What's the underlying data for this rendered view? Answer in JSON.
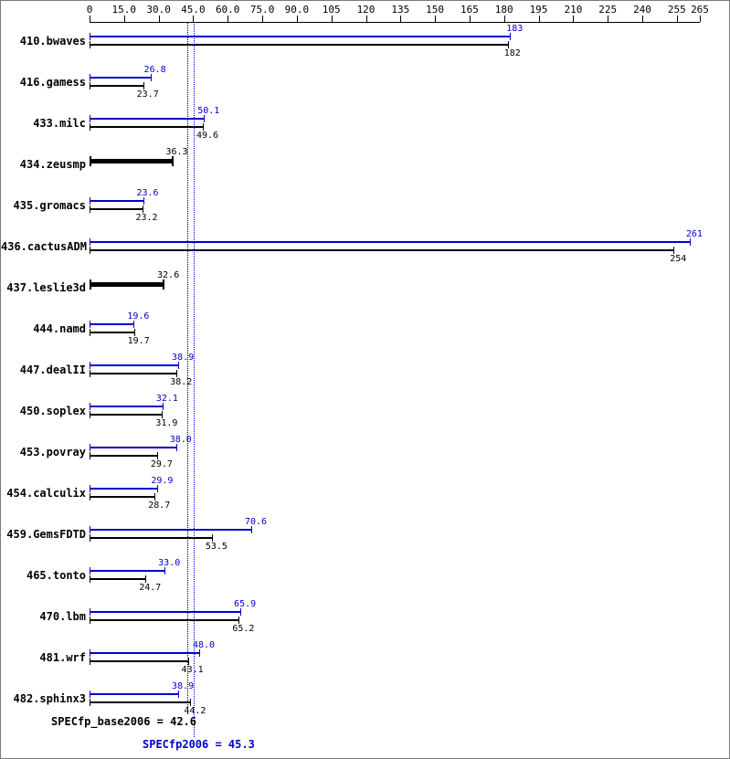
{
  "chart_data": {
    "type": "bar",
    "orientation": "horizontal",
    "x_axis": {
      "min": 0,
      "max": 265,
      "tick_values": [
        0,
        15,
        30,
        45,
        60,
        75,
        90,
        105,
        120,
        135,
        150,
        165,
        180,
        195,
        210,
        225,
        240,
        255,
        265
      ],
      "tick_labels": [
        "0",
        "15.0",
        "30.0",
        "45.0",
        "60.0",
        "75.0",
        "90.0",
        "105",
        "120",
        "135",
        "150",
        "165",
        "180",
        "195",
        "210",
        "225",
        "240",
        "255",
        "265"
      ],
      "grid": false
    },
    "series_meaning": {
      "peak": "SPECfp2006 (blue)",
      "base": "SPECfp_base2006 (black)"
    },
    "benchmarks": [
      {
        "name": "410.bwaves",
        "peak": 183,
        "peak_label": "183",
        "base": 182,
        "base_label": "182"
      },
      {
        "name": "416.gamess",
        "peak": 26.8,
        "peak_label": "26.8",
        "base": 23.7,
        "base_label": "23.7"
      },
      {
        "name": "433.milc",
        "peak": 50.1,
        "peak_label": "50.1",
        "base": 49.6,
        "base_label": "49.6"
      },
      {
        "name": "434.zeusmp",
        "single": true,
        "value": 36.3,
        "value_label": "36.3"
      },
      {
        "name": "435.gromacs",
        "peak": 23.6,
        "peak_label": "23.6",
        "base": 23.2,
        "base_label": "23.2"
      },
      {
        "name": "436.cactusADM",
        "peak": 261,
        "peak_label": "261",
        "base": 254,
        "base_label": "254"
      },
      {
        "name": "437.leslie3d",
        "single": true,
        "value": 32.6,
        "value_label": "32.6"
      },
      {
        "name": "444.namd",
        "peak": 19.6,
        "peak_label": "19.6",
        "base": 19.7,
        "base_label": "19.7"
      },
      {
        "name": "447.dealII",
        "peak": 38.9,
        "peak_label": "38.9",
        "base": 38.2,
        "base_label": "38.2"
      },
      {
        "name": "450.soplex",
        "peak": 32.1,
        "peak_label": "32.1",
        "base": 31.9,
        "base_label": "31.9"
      },
      {
        "name": "453.povray",
        "peak": 38.0,
        "peak_label": "38.0",
        "base": 29.7,
        "base_label": "29.7"
      },
      {
        "name": "454.calculix",
        "peak": 29.9,
        "peak_label": "29.9",
        "base": 28.7,
        "base_label": "28.7"
      },
      {
        "name": "459.GemsFDTD",
        "peak": 70.6,
        "peak_label": "70.6",
        "base": 53.5,
        "base_label": "53.5"
      },
      {
        "name": "465.tonto",
        "peak": 33.0,
        "peak_label": "33.0",
        "base": 24.7,
        "base_label": "24.7"
      },
      {
        "name": "470.lbm",
        "peak": 65.9,
        "peak_label": "65.9",
        "base": 65.2,
        "base_label": "65.2"
      },
      {
        "name": "481.wrf",
        "peak": 48.0,
        "peak_label": "48.0",
        "base": 43.1,
        "base_label": "43.1"
      },
      {
        "name": "482.sphinx3",
        "peak": 38.9,
        "peak_label": "38.9",
        "base": 44.2,
        "base_label": "44.2"
      }
    ],
    "summary": {
      "base_text": "SPECfp_base2006 = 42.6",
      "base_value": 42.6,
      "peak_text": "SPECfp2006 = 45.3",
      "peak_value": 45.3
    },
    "colors": {
      "peak": "#0000cc",
      "base": "#000000",
      "background": "#ffffff"
    }
  }
}
